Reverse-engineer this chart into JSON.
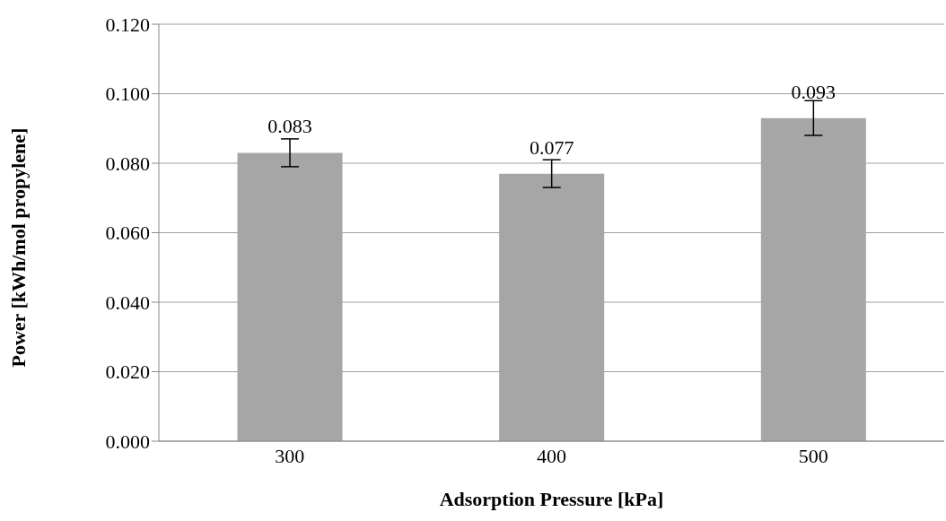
{
  "chart_data": {
    "type": "bar",
    "xlabel": "Adsorption Pressure [kPa]",
    "ylabel": "Power [kWh/mol propylene]",
    "categories": [
      "300",
      "400",
      "500"
    ],
    "values": [
      0.083,
      0.077,
      0.093
    ],
    "errors": [
      0.004,
      0.004,
      0.005
    ],
    "color": "#a6a6a6",
    "ylim": [
      0,
      0.12
    ],
    "yticks": [
      {
        "value": 0,
        "label": "0.000"
      },
      {
        "value": 0.02,
        "label": "0.020"
      },
      {
        "value": 0.04,
        "label": "0.040"
      },
      {
        "value": 0.06,
        "label": "0.060"
      },
      {
        "value": 0.08,
        "label": "0.080"
      },
      {
        "value": 0.1,
        "label": "0.100"
      },
      {
        "value": 0.12,
        "label": "0.120"
      }
    ],
    "grid": "y",
    "data_labels": true,
    "legend": false
  }
}
